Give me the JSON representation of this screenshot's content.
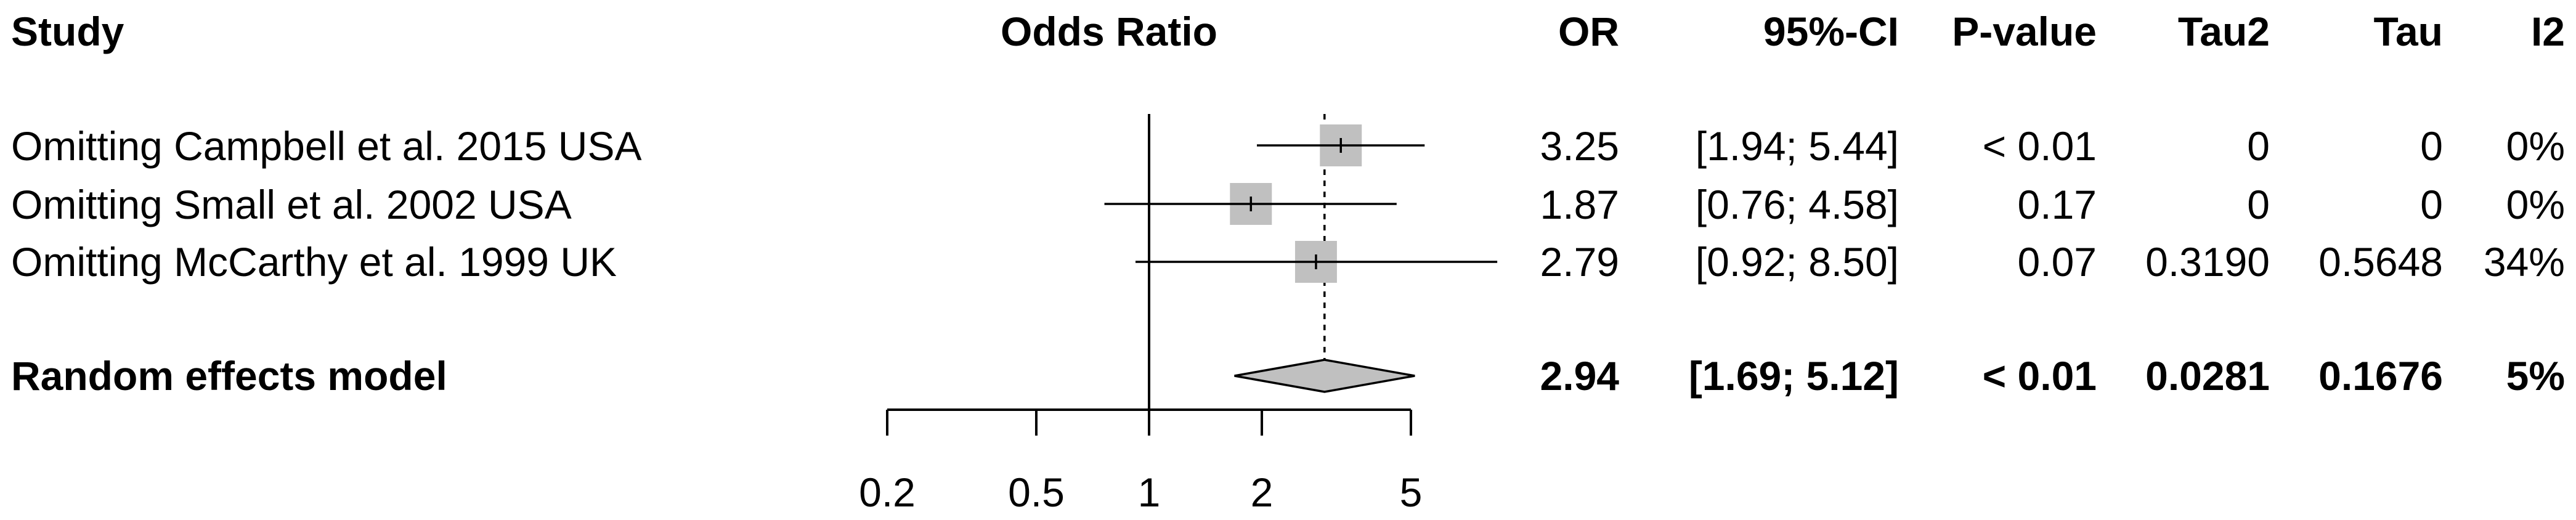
{
  "header": {
    "study": "Study",
    "plot_title": "Odds Ratio",
    "or": "OR",
    "ci": "95%-CI",
    "pvalue": "P-value",
    "tau2": "Tau2",
    "tau": "Tau",
    "i2": "I2"
  },
  "rows": [
    {
      "study": "Omitting Campbell et al. 2015 USA",
      "or": "3.25",
      "ci": "[1.94; 5.44]",
      "pvalue": "< 0.01",
      "tau2": "0",
      "tau": "0",
      "i2": "0%"
    },
    {
      "study": "Omitting Small et al. 2002 USA",
      "or": "1.87",
      "ci": "[0.76; 4.58]",
      "pvalue": "0.17",
      "tau2": "0",
      "tau": "0",
      "i2": "0%"
    },
    {
      "study": "Omitting McCarthy et al. 1999 UK",
      "or": "2.79",
      "ci": "[0.92; 8.50]",
      "pvalue": "0.07",
      "tau2": "0.3190",
      "tau": "0.5648",
      "i2": "34%"
    }
  ],
  "summary": {
    "study": "Random effects model",
    "or": "2.94",
    "ci": "[1.69; 5.12]",
    "pvalue": "< 0.01",
    "tau2": "0.0281",
    "tau": "0.1676",
    "i2": "5%"
  },
  "chart_data": {
    "type": "forest",
    "title": "Odds Ratio",
    "scale": "log",
    "xlim": [
      0.2,
      5
    ],
    "xticks": [
      "0.2",
      "0.5",
      "1",
      "2",
      "5"
    ],
    "reference_line": 1,
    "pooled_line": 2.94,
    "studies": [
      {
        "label": "Omitting Campbell et al. 2015 USA",
        "estimate": 3.25,
        "lower": 1.94,
        "upper": 5.44
      },
      {
        "label": "Omitting Small et al. 2002 USA",
        "estimate": 1.87,
        "lower": 0.76,
        "upper": 4.58
      },
      {
        "label": "Omitting McCarthy et al. 1999 UK",
        "estimate": 2.79,
        "lower": 0.92,
        "upper": 8.5
      }
    ],
    "pooled": {
      "label": "Random effects model",
      "estimate": 2.94,
      "lower": 1.69,
      "upper": 5.12
    }
  },
  "colors": {
    "square": "#c0c0c0",
    "diamond": "#c0c0c0",
    "line": "#000000"
  }
}
